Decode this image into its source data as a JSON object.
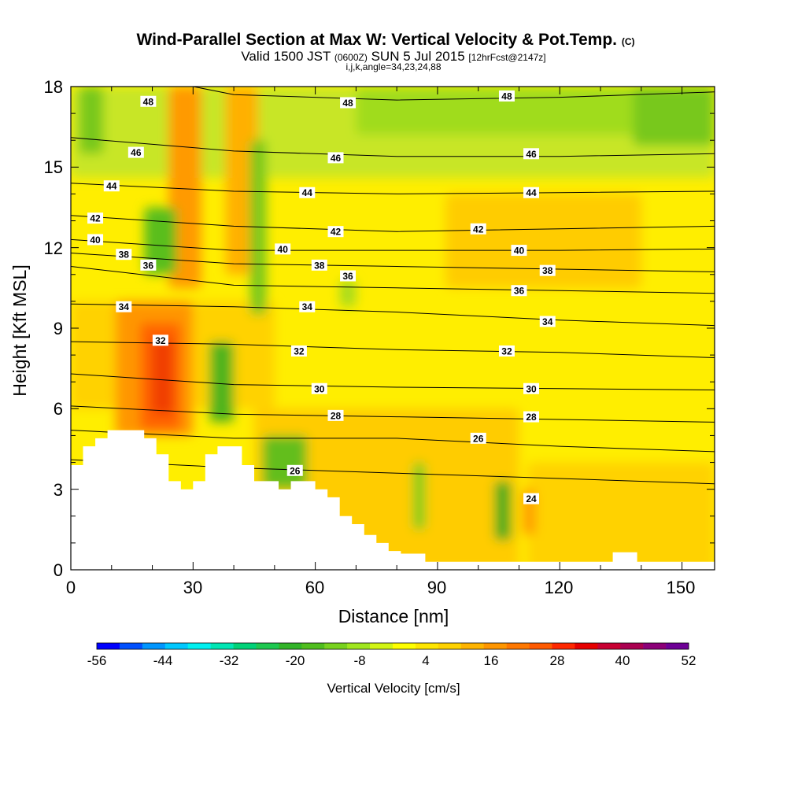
{
  "chart_data": {
    "type": "heatmap",
    "title": "Wind-Parallel Section at Max W: Vertical Velocity & Pot.Temp.",
    "title_mark": "(C)",
    "subtitle_parts": {
      "valid": "Valid 1500 JST",
      "utc": "(0600Z)",
      "date": "SUN 5 Jul 2015",
      "forecast": "[12hrFcst@2147z]"
    },
    "indices_line": "i,j,k,angle=34,23,24,88",
    "xlabel": "Distance [nm]",
    "ylabel": "Height [Kft MSL]",
    "xlim": [
      0,
      158
    ],
    "ylim": [
      0,
      18
    ],
    "x_ticks": [
      "0",
      "30",
      "60",
      "90",
      "120",
      "150"
    ],
    "y_ticks": [
      "0",
      "3",
      "6",
      "9",
      "12",
      "15",
      "18"
    ],
    "colorbar": {
      "label": "Vertical Velocity [cm/s]",
      "tick_labels": [
        "-56",
        "-44",
        "-32",
        "-20",
        "-8",
        "4",
        "16",
        "28",
        "40",
        "52"
      ],
      "colors": [
        "#0000ff",
        "#0050ff",
        "#0096ff",
        "#00c8ff",
        "#00f0f0",
        "#00e6b4",
        "#00d278",
        "#1ec850",
        "#32b428",
        "#50be1e",
        "#78d21e",
        "#a0e61e",
        "#d2f514",
        "#ffff00",
        "#ffe600",
        "#ffd200",
        "#ffb400",
        "#ff9600",
        "#ff7800",
        "#ff5a00",
        "#ff2800",
        "#e60000",
        "#c80032",
        "#aa0050",
        "#8c0078",
        "#6e0096"
      ]
    },
    "terrain_kft": [
      [
        0,
        0
      ],
      [
        0,
        3.9
      ],
      [
        3,
        3.9
      ],
      [
        3,
        4.6
      ],
      [
        6,
        4.6
      ],
      [
        6,
        4.9
      ],
      [
        9,
        4.9
      ],
      [
        9,
        5.2
      ],
      [
        18,
        5.2
      ],
      [
        18,
        4.9
      ],
      [
        21,
        4.9
      ],
      [
        21,
        4.3
      ],
      [
        24,
        4.3
      ],
      [
        24,
        3.3
      ],
      [
        27,
        3.3
      ],
      [
        27,
        3.0
      ],
      [
        30,
        3.0
      ],
      [
        30,
        3.3
      ],
      [
        33,
        3.3
      ],
      [
        33,
        4.3
      ],
      [
        36,
        4.3
      ],
      [
        36,
        4.6
      ],
      [
        42,
        4.6
      ],
      [
        42,
        3.9
      ],
      [
        45,
        3.9
      ],
      [
        45,
        3.3
      ],
      [
        51,
        3.3
      ],
      [
        51,
        3.0
      ],
      [
        54,
        3.0
      ],
      [
        54,
        3.3
      ],
      [
        60,
        3.3
      ],
      [
        60,
        3.0
      ],
      [
        63,
        3.0
      ],
      [
        63,
        2.7
      ],
      [
        66,
        2.7
      ],
      [
        66,
        2.0
      ],
      [
        69,
        2.0
      ],
      [
        69,
        1.7
      ],
      [
        72,
        1.7
      ],
      [
        72,
        1.3
      ],
      [
        75,
        1.3
      ],
      [
        75,
        1.0
      ],
      [
        78,
        1.0
      ],
      [
        78,
        0.7
      ],
      [
        81,
        0.7
      ],
      [
        81,
        0.6
      ],
      [
        87,
        0.6
      ],
      [
        87,
        0.3
      ],
      [
        133,
        0.3
      ],
      [
        133,
        0.65
      ],
      [
        139,
        0.65
      ],
      [
        139,
        0.3
      ],
      [
        158,
        0.3
      ],
      [
        158,
        0
      ]
    ],
    "theta_labels": [
      {
        "text": "48",
        "x": 19,
        "y": 17.45
      },
      {
        "text": "48",
        "x": 68,
        "y": 17.4
      },
      {
        "text": "48",
        "x": 107,
        "y": 17.65
      },
      {
        "text": "46",
        "x": 16,
        "y": 15.55
      },
      {
        "text": "46",
        "x": 65,
        "y": 15.35
      },
      {
        "text": "46",
        "x": 113,
        "y": 15.5
      },
      {
        "text": "44",
        "x": 10,
        "y": 14.3
      },
      {
        "text": "44",
        "x": 58,
        "y": 14.05
      },
      {
        "text": "44",
        "x": 113,
        "y": 14.05
      },
      {
        "text": "42",
        "x": 6,
        "y": 13.1
      },
      {
        "text": "42",
        "x": 65,
        "y": 12.6
      },
      {
        "text": "42",
        "x": 100,
        "y": 12.7
      },
      {
        "text": "40",
        "x": 6,
        "y": 12.3
      },
      {
        "text": "40",
        "x": 52,
        "y": 11.95
      },
      {
        "text": "40",
        "x": 110,
        "y": 11.9
      },
      {
        "text": "38",
        "x": 13,
        "y": 11.75
      },
      {
        "text": "38",
        "x": 61,
        "y": 11.35
      },
      {
        "text": "38",
        "x": 117,
        "y": 11.15
      },
      {
        "text": "36",
        "x": 19,
        "y": 11.35
      },
      {
        "text": "36",
        "x": 68,
        "y": 10.95
      },
      {
        "text": "36",
        "x": 110,
        "y": 10.4
      },
      {
        "text": "34",
        "x": 13,
        "y": 9.8
      },
      {
        "text": "34",
        "x": 58,
        "y": 9.8
      },
      {
        "text": "34",
        "x": 117,
        "y": 9.25
      },
      {
        "text": "32",
        "x": 22,
        "y": 8.55
      },
      {
        "text": "32",
        "x": 56,
        "y": 8.15
      },
      {
        "text": "32",
        "x": 107,
        "y": 8.15
      },
      {
        "text": "30",
        "x": 61,
        "y": 6.75
      },
      {
        "text": "30",
        "x": 113,
        "y": 6.75
      },
      {
        "text": "28",
        "x": 65,
        "y": 5.75
      },
      {
        "text": "28",
        "x": 113,
        "y": 5.7
      },
      {
        "text": "26",
        "x": 100,
        "y": 4.9
      },
      {
        "text": "26",
        "x": 55,
        "y": 3.7
      },
      {
        "text": "24",
        "x": 113,
        "y": 2.65
      }
    ]
  }
}
